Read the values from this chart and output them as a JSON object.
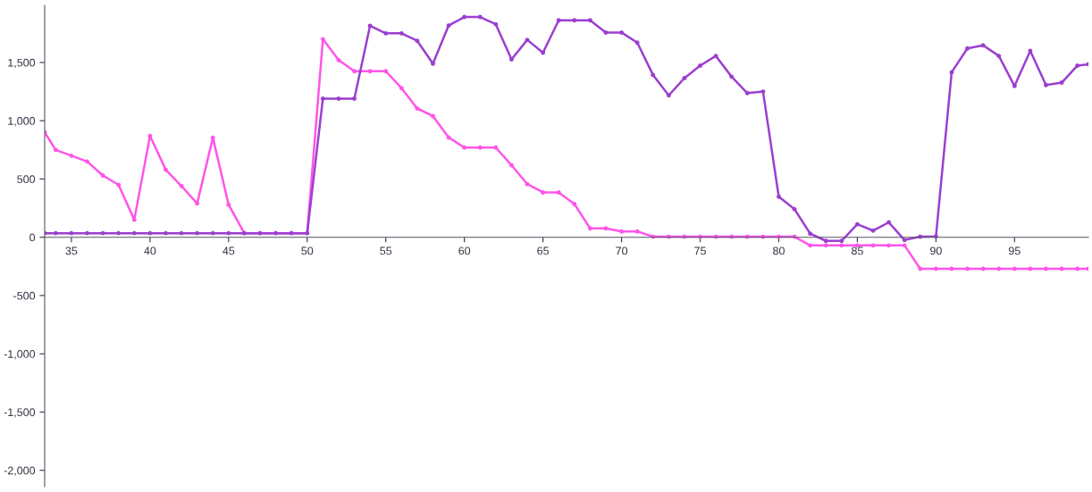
{
  "chart_data": {
    "type": "line",
    "x": [
      33.3,
      34,
      35,
      36,
      37,
      38,
      39,
      40,
      41,
      42,
      43,
      44,
      45,
      46,
      47,
      48,
      49,
      50,
      51,
      52,
      53,
      54,
      55,
      56,
      57,
      58,
      59,
      60,
      61,
      62,
      63,
      64,
      65,
      66,
      67,
      68,
      69,
      70,
      71,
      72,
      73,
      74,
      75,
      76,
      77,
      78,
      79,
      80,
      81,
      82,
      83,
      84,
      85,
      86,
      87,
      88,
      89,
      90,
      91,
      92,
      93,
      94,
      95,
      96,
      97,
      98,
      99,
      99.7
    ],
    "series": [
      {
        "color": "#ff55e8",
        "values": [
          900,
          750,
          700,
          650,
          530,
          450,
          150,
          870,
          580,
          440,
          290,
          855,
          280,
          35,
          35,
          35,
          35,
          35,
          1700,
          1520,
          1425,
          1425,
          1425,
          1280,
          1105,
          1040,
          856,
          770,
          770,
          770,
          618,
          456,
          385,
          385,
          285,
          76,
          76,
          50,
          50,
          5,
          5,
          5,
          5,
          5,
          5,
          5,
          5,
          5,
          5,
          -70,
          -70,
          -70,
          -70,
          -70,
          -70,
          -70,
          -270,
          -270,
          -270,
          -270,
          -270,
          -270,
          -270,
          -270,
          -270,
          -270,
          -270,
          -270
        ]
      },
      {
        "color": "#9b3fd0",
        "values": [
          35,
          35,
          35,
          35,
          35,
          35,
          35,
          35,
          35,
          35,
          35,
          35,
          35,
          35,
          35,
          35,
          35,
          35,
          1190,
          1190,
          1190,
          1815,
          1750,
          1750,
          1686,
          1490,
          1817,
          1890,
          1890,
          1828,
          1527,
          1694,
          1584,
          1862,
          1862,
          1862,
          1757,
          1757,
          1670,
          1393,
          1218,
          1366,
          1473,
          1556,
          1378,
          1237,
          1250,
          348,
          241,
          31,
          -31,
          -31,
          112,
          57,
          128,
          -24,
          5,
          7,
          1416,
          1620,
          1647,
          1556,
          1298,
          1600,
          1306,
          1327,
          1473,
          1485
        ]
      }
    ],
    "xlim": [
      33.3,
      99.7
    ],
    "xticks": [
      35,
      40,
      45,
      50,
      55,
      60,
      65,
      70,
      75,
      80,
      85,
      90,
      95
    ],
    "ylim": [
      -2140,
      1990
    ],
    "yticks": [
      {
        "value": -2000,
        "label": "-2,000"
      },
      {
        "value": -1500,
        "label": "-1,500"
      },
      {
        "value": -1000,
        "label": "-1,000"
      },
      -500,
      0,
      500,
      {
        "value": 1000,
        "label": "1,000"
      },
      {
        "value": 1500,
        "label": "1,500"
      }
    ],
    "marker": "circle",
    "line_style": "solid"
  }
}
